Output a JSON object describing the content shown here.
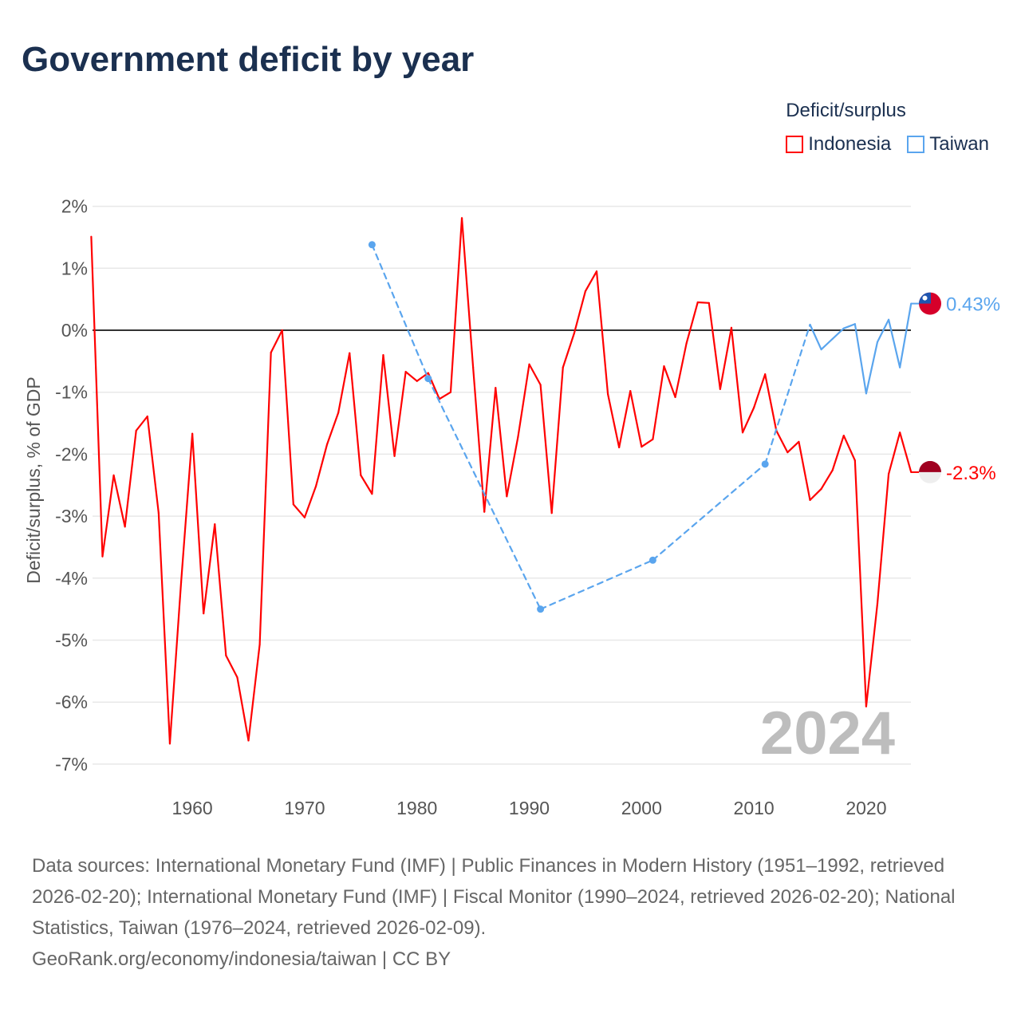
{
  "title": "Government deficit by year",
  "legend": {
    "title": "Deficit/surplus",
    "items": [
      {
        "label": "Indonesia",
        "color": "#ff0000"
      },
      {
        "label": "Taiwan",
        "color": "#5aa5ee"
      }
    ]
  },
  "footer": {
    "sources": "Data sources: International Monetary Fund (IMF) | Public Finances in Modern History (1951–1992, retrieved 2026-02-20); International Monetary Fund (IMF) | Fiscal Monitor (1990–2024, retrieved 2026-02-20); National Statistics, Taiwan (1976–2024, retrieved 2026-02-09).",
    "credit": "GeoRank.org/economy/indonesia/taiwan | CC BY"
  },
  "chart_data": {
    "type": "line",
    "title": "Government deficit by year",
    "ylabel": "Deficit/surplus, % of GDP",
    "xlabel": "",
    "ylim": [
      -7,
      2
    ],
    "xlim": [
      1951,
      2024
    ],
    "yticks": [
      "2%",
      "1%",
      "0%",
      "-1%",
      "-2%",
      "-3%",
      "-4%",
      "-5%",
      "-6%",
      "-7%"
    ],
    "ytick_values": [
      2,
      1,
      0,
      -1,
      -2,
      -3,
      -4,
      -5,
      -6,
      -7
    ],
    "xticks": [
      "1960",
      "1970",
      "1980",
      "1990",
      "2000",
      "2010",
      "2020"
    ],
    "xtick_values": [
      1960,
      1970,
      1980,
      1990,
      2000,
      2010,
      2020
    ],
    "year_watermark": "2024",
    "series": [
      {
        "name": "Indonesia",
        "color": "#ff0000",
        "end_label": "-2.3%",
        "x": [
          1951,
          1952,
          1953,
          1954,
          1955,
          1956,
          1957,
          1958,
          1959,
          1960,
          1961,
          1962,
          1963,
          1964,
          1965,
          1966,
          1967,
          1968,
          1969,
          1970,
          1971,
          1972,
          1973,
          1974,
          1975,
          1976,
          1977,
          1978,
          1979,
          1980,
          1981,
          1982,
          1983,
          1984,
          1985,
          1986,
          1987,
          1988,
          1989,
          1990,
          1991,
          1992,
          1993,
          1994,
          1995,
          1996,
          1997,
          1998,
          1999,
          2000,
          2001,
          2002,
          2003,
          2004,
          2005,
          2006,
          2007,
          2008,
          2009,
          2010,
          2011,
          2012,
          2013,
          2014,
          2015,
          2016,
          2017,
          2018,
          2019,
          2020,
          2021,
          2022,
          2023,
          2024
        ],
        "y": [
          1.51,
          -3.65,
          -2.34,
          -3.17,
          -1.62,
          -1.39,
          -2.95,
          -6.67,
          -4.07,
          -1.67,
          -4.57,
          -3.13,
          -5.25,
          -5.6,
          -6.62,
          -5.07,
          -0.36,
          0.0,
          -2.81,
          -3.02,
          -2.52,
          -1.84,
          -1.33,
          -0.37,
          -2.34,
          -2.64,
          -0.4,
          -2.03,
          -0.67,
          -0.82,
          -0.69,
          -1.11,
          -1.0,
          1.81,
          -0.6,
          -2.93,
          -0.93,
          -2.68,
          -1.72,
          -0.55,
          -0.88,
          -2.95,
          -0.6,
          -0.05,
          0.63,
          0.95,
          -1.03,
          -1.89,
          -0.98,
          -1.88,
          -1.76,
          -0.58,
          -1.08,
          -0.21,
          0.45,
          0.44,
          -0.95,
          0.04,
          -1.65,
          -1.25,
          -0.71,
          -1.62,
          -1.97,
          -1.8,
          -2.74,
          -2.56,
          -2.26,
          -1.7,
          -2.1,
          -6.07,
          -4.41,
          -2.32,
          -1.65,
          -2.29
        ]
      },
      {
        "name": "Taiwan",
        "color": "#5aa5ee",
        "end_label": "0.43%",
        "x": [
          1976,
          1981,
          1991,
          2001,
          2011,
          2015,
          2016,
          2017,
          2018,
          2019,
          2020,
          2021,
          2022,
          2023,
          2024
        ],
        "y": [
          1.38,
          -0.78,
          -4.5,
          -3.71,
          -2.16,
          0.09,
          -0.31,
          -0.14,
          0.03,
          0.1,
          -1.02,
          -0.19,
          0.17,
          -0.6,
          0.43
        ]
      }
    ]
  }
}
